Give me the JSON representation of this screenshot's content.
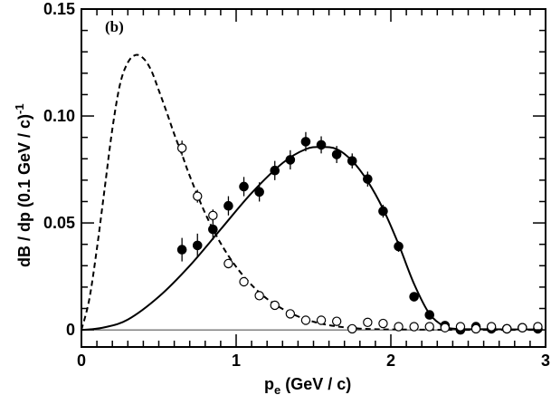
{
  "chart_data": {
    "type": "scatter",
    "panel_label": "(b)",
    "xlabel_main": "p",
    "xlabel_sub": "e",
    "xlabel_rest": " (GeV / c)",
    "ylabel_main": "dB / dp (0.1 GeV / c)",
    "ylabel_sup": "-1",
    "xlim": [
      0,
      3
    ],
    "ylim": [
      -0.008,
      0.15
    ],
    "x_ticks": [
      {
        "value": 0,
        "label": "0"
      },
      {
        "value": 1,
        "label": "1"
      },
      {
        "value": 2,
        "label": "2"
      },
      {
        "value": 3,
        "label": "3"
      }
    ],
    "y_ticks": [
      {
        "value": 0,
        "label": "0"
      },
      {
        "value": 0.05,
        "label": "0.05"
      },
      {
        "value": 0.1,
        "label": "0.10"
      },
      {
        "value": 0.15,
        "label": "0.15"
      }
    ],
    "series": [
      {
        "name": "filled-data",
        "marker": "filled-circle",
        "x": [
          0.65,
          0.75,
          0.85,
          0.95,
          1.05,
          1.15,
          1.25,
          1.35,
          1.45,
          1.55,
          1.65,
          1.75,
          1.85,
          1.95,
          2.05,
          2.15,
          2.25,
          2.35,
          2.45,
          2.55,
          2.65,
          2.75,
          2.85,
          2.95
        ],
        "y": [
          0.0375,
          0.0395,
          0.047,
          0.058,
          0.067,
          0.0645,
          0.0745,
          0.0795,
          0.088,
          0.0865,
          0.082,
          0.079,
          0.0705,
          0.0555,
          0.039,
          0.0155,
          0.007,
          0.002,
          0.0,
          0.0015,
          0.0005,
          0.0005,
          0.001,
          0.0005
        ],
        "err": [
          0.0055,
          0.0055,
          0.005,
          0.0045,
          0.0045,
          0.0045,
          0.0045,
          0.0045,
          0.0045,
          0.004,
          0.004,
          0.0035,
          0.0035,
          0.003,
          0.0025,
          0.0015,
          0.001,
          0.0008,
          0.0008,
          0.0008,
          0.0008,
          0.0008,
          0.0008,
          0.0008
        ]
      },
      {
        "name": "open-data",
        "marker": "open-circle",
        "x": [
          0.65,
          0.75,
          0.85,
          0.95,
          1.05,
          1.15,
          1.25,
          1.35,
          1.45,
          1.55,
          1.65,
          1.75,
          1.85,
          1.95,
          2.05,
          2.15,
          2.25,
          2.35,
          2.45,
          2.55,
          2.65,
          2.75,
          2.85,
          2.95
        ],
        "y": [
          0.085,
          0.0625,
          0.0535,
          0.031,
          0.0225,
          0.016,
          0.0115,
          0.0075,
          0.0045,
          0.0045,
          0.004,
          0.0005,
          0.0035,
          0.003,
          0.0015,
          0.0015,
          0.0015,
          0.001,
          0.0015,
          0.0005,
          0.0015,
          0.0005,
          0.001,
          0.0015
        ],
        "err": [
          0.0035,
          0.003,
          0.0028,
          0.0022,
          0.002,
          0.0016,
          0.0014,
          0.0012,
          0.001,
          0.001,
          0.001,
          0.0008,
          0.0008,
          0.0008,
          0.0008,
          0.0008,
          0.0008,
          0.0008,
          0.0008,
          0.0008,
          0.0008,
          0.0008,
          0.0008,
          0.0008
        ]
      },
      {
        "name": "solid-fit",
        "style": "solid-line",
        "x": [
          0.0,
          0.05,
          0.15,
          0.3,
          0.5,
          0.7,
          0.9,
          1.1,
          1.3,
          1.45,
          1.55,
          1.65,
          1.75,
          1.85,
          1.95,
          2.05,
          2.15,
          2.25,
          2.35,
          2.45,
          2.6,
          2.8,
          2.95
        ],
        "y": [
          0.0,
          0.0002,
          0.0012,
          0.0048,
          0.0155,
          0.03,
          0.047,
          0.064,
          0.078,
          0.0845,
          0.0855,
          0.0845,
          0.079,
          0.0695,
          0.0565,
          0.04,
          0.0215,
          0.0075,
          0.0015,
          0.0004,
          0.0003,
          0.0002,
          0.0002
        ]
      },
      {
        "name": "dashed-fit",
        "style": "dashed-line",
        "x": [
          0.0,
          0.05,
          0.1,
          0.15,
          0.2,
          0.25,
          0.3,
          0.35,
          0.4,
          0.45,
          0.5,
          0.55,
          0.6,
          0.65,
          0.7,
          0.8,
          0.9,
          1.0,
          1.1,
          1.2,
          1.3,
          1.4,
          1.5,
          1.6,
          1.7,
          1.8,
          1.9,
          2.0,
          2.2,
          2.5,
          2.8,
          2.95
        ],
        "y": [
          0.0,
          0.014,
          0.038,
          0.066,
          0.094,
          0.115,
          0.125,
          0.1285,
          0.127,
          0.1215,
          0.112,
          0.102,
          0.0915,
          0.082,
          0.072,
          0.0545,
          0.0405,
          0.0295,
          0.021,
          0.0145,
          0.0098,
          0.0063,
          0.0038,
          0.0022,
          0.0012,
          0.0006,
          0.0003,
          0.0002,
          0.0001,
          0.0,
          0.0,
          0.0
        ]
      }
    ]
  }
}
